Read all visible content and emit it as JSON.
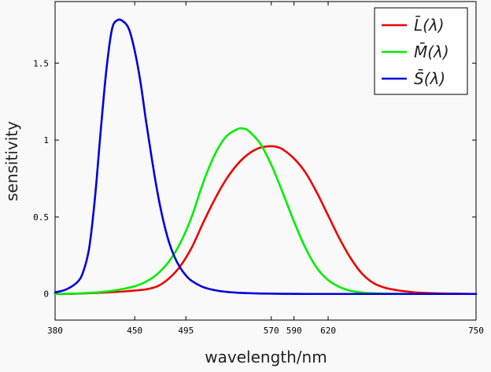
{
  "chart_data": {
    "type": "line",
    "xlabel": "wavelength/nm",
    "ylabel": "sensitivity",
    "xlim": [
      380,
      750
    ],
    "ylim": [
      -0.17,
      1.9
    ],
    "x_ticks": [
      380,
      450,
      495,
      570,
      590,
      620,
      750
    ],
    "y_ticks": [
      0,
      0.5,
      1,
      1.5
    ],
    "y_tick_labels": [
      "0",
      "0.5",
      "1",
      "1.5"
    ],
    "grid": false,
    "legend_position": "top-right",
    "series": [
      {
        "name": "L̄(λ)",
        "color": "#ee0000",
        "x": [
          380,
          390,
          400,
          410,
          420,
          430,
          440,
          450,
          460,
          470,
          480,
          490,
          500,
          510,
          520,
          530,
          540,
          550,
          560,
          570,
          575,
          580,
          590,
          600,
          610,
          620,
          630,
          640,
          650,
          660,
          670,
          680,
          690,
          700,
          720,
          750
        ],
        "y": [
          0.0,
          0.0,
          0.002,
          0.005,
          0.008,
          0.012,
          0.016,
          0.022,
          0.03,
          0.05,
          0.1,
          0.18,
          0.3,
          0.46,
          0.61,
          0.74,
          0.84,
          0.91,
          0.95,
          0.96,
          0.955,
          0.94,
          0.88,
          0.79,
          0.66,
          0.51,
          0.36,
          0.23,
          0.13,
          0.07,
          0.04,
          0.025,
          0.015,
          0.008,
          0.003,
          0.0
        ]
      },
      {
        "name": "M̄(λ)",
        "color": "#00ee00",
        "x": [
          380,
          390,
          400,
          410,
          420,
          430,
          440,
          450,
          460,
          470,
          480,
          490,
          500,
          510,
          520,
          530,
          540,
          545,
          550,
          560,
          570,
          580,
          590,
          600,
          610,
          620,
          630,
          640,
          650,
          660,
          670,
          680,
          690,
          700,
          720,
          750
        ],
        "y": [
          0.0,
          0.001,
          0.003,
          0.007,
          0.012,
          0.02,
          0.033,
          0.05,
          0.08,
          0.13,
          0.21,
          0.33,
          0.5,
          0.72,
          0.9,
          1.02,
          1.07,
          1.075,
          1.06,
          0.98,
          0.84,
          0.66,
          0.47,
          0.3,
          0.17,
          0.09,
          0.045,
          0.02,
          0.009,
          0.004,
          0.002,
          0.001,
          0.0,
          0.0,
          0.0,
          0.0
        ]
      },
      {
        "name": "S̄(λ)",
        "color": "#0000dd",
        "x": [
          380,
          390,
          400,
          405,
          410,
          415,
          420,
          425,
          430,
          435,
          440,
          445,
          450,
          455,
          460,
          465,
          470,
          475,
          480,
          485,
          490,
          495,
          500,
          510,
          520,
          530,
          540,
          550,
          560,
          570,
          580,
          600,
          650,
          700,
          750
        ],
        "y": [
          0.01,
          0.03,
          0.08,
          0.15,
          0.3,
          0.62,
          1.05,
          1.45,
          1.72,
          1.78,
          1.77,
          1.72,
          1.58,
          1.38,
          1.12,
          0.88,
          0.66,
          0.48,
          0.34,
          0.24,
          0.17,
          0.12,
          0.085,
          0.045,
          0.025,
          0.014,
          0.008,
          0.005,
          0.003,
          0.002,
          0.001,
          0.0,
          0.0,
          0.0,
          0.0
        ]
      }
    ]
  }
}
